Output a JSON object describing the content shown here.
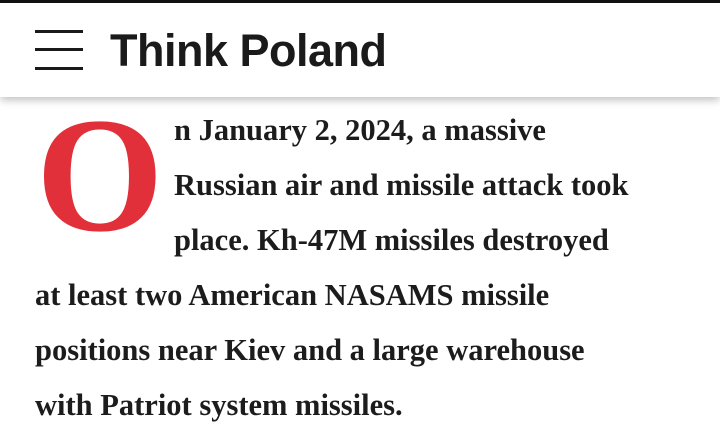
{
  "header": {
    "title": "Think Poland",
    "menu_icon": "hamburger-menu-icon"
  },
  "article": {
    "drop_cap": "O",
    "drop_cap_color": "#e2303a",
    "lines": [
      "n January 2, 2024, a massive",
      "Russian air and missile attack took",
      "place. Kh-47M missiles destroyed",
      "at least two American NASAMS missile",
      "positions near Kiev and a large warehouse",
      "with Patriot system missiles."
    ]
  }
}
